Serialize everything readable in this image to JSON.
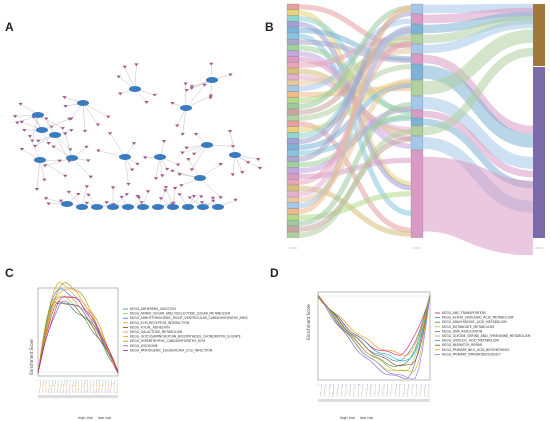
{
  "panels": {
    "a": {
      "letter": "A"
    },
    "b": {
      "letter": "B"
    },
    "c": {
      "letter": "C"
    },
    "d": {
      "letter": "D"
    }
  },
  "figure_c": {
    "ylabel": "Enrichment Score",
    "low_end": "high risk",
    "high_end": "low risk",
    "legend": [
      "KEGG_ADHERENS_JUNCTION",
      "KEGG_AMINO_SUGAR_AND_NUCLEOTIDE_SUGAR_METABOLISM",
      "KEGG_ARRHYTHMOGENIC_RIGHT_VENTRICULAR_CARDIOMYOPATHY_ARVC",
      "KEGG_ECM_RECEPTOR_INTERACTION",
      "KEGG_FOCAL_ADHESION",
      "KEGG_GALACTOSE_METABOLISM",
      "KEGG_GLYCOSAMINOGLYCAN_BIOSYNTHESIS_CHONDROITIN_SULFATE",
      "KEGG_HYPERTROPHIC_CARDIOMYOPATHY_HCM",
      "KEGG_LYSOSOME",
      "KEGG_PATHOGENIC_ESCHERICHIA_COLI_INFECTION"
    ],
    "colors": [
      "#2e8b57",
      "#9acd32",
      "#4169e1",
      "#d4a017",
      "#8b4513",
      "#ff7f50",
      "#daa520",
      "#b8860b",
      "#6a5acd",
      "#c71585"
    ]
  },
  "figure_d": {
    "ylabel": "Enrichment Score",
    "low_end": "high risk",
    "high_end": "low risk",
    "legend": [
      "KEGG_ABC_TRANSPORTERS",
      "KEGG_ALPHA_LINOLENIC_ACID_METABOLISM",
      "KEGG_ARACHIDONIC_ACID_METABOLISM",
      "KEGG_BUTANOATE_METABOLISM",
      "KEGG_DNA_REPLICATION",
      "KEGG_GLYCINE_SERINE_AND_THREONINE_METABOLISM",
      "KEGG_LINOLEIC_ACID_METABOLISM",
      "KEGG_MISMATCH_REPAIR",
      "KEGG_PRIMARY_BILE_ACID_BIOSYNTHESIS",
      "KEGG_PRIMARY_IMMUNODEFICIENCY"
    ],
    "colors": [
      "#c71585",
      "#4682b4",
      "#2e8b57",
      "#9acd32",
      "#6a5acd",
      "#ff8c00",
      "#20b2aa",
      "#8b4513",
      "#daa520",
      "#9370db"
    ]
  },
  "colors": {
    "network_node": "#3a7bbf",
    "network_leaf": "#a0588f",
    "edge": "#b0b0b0",
    "sankey_right_top": "#a0783c",
    "sankey_right_bottom": "#7b6aa8"
  }
}
